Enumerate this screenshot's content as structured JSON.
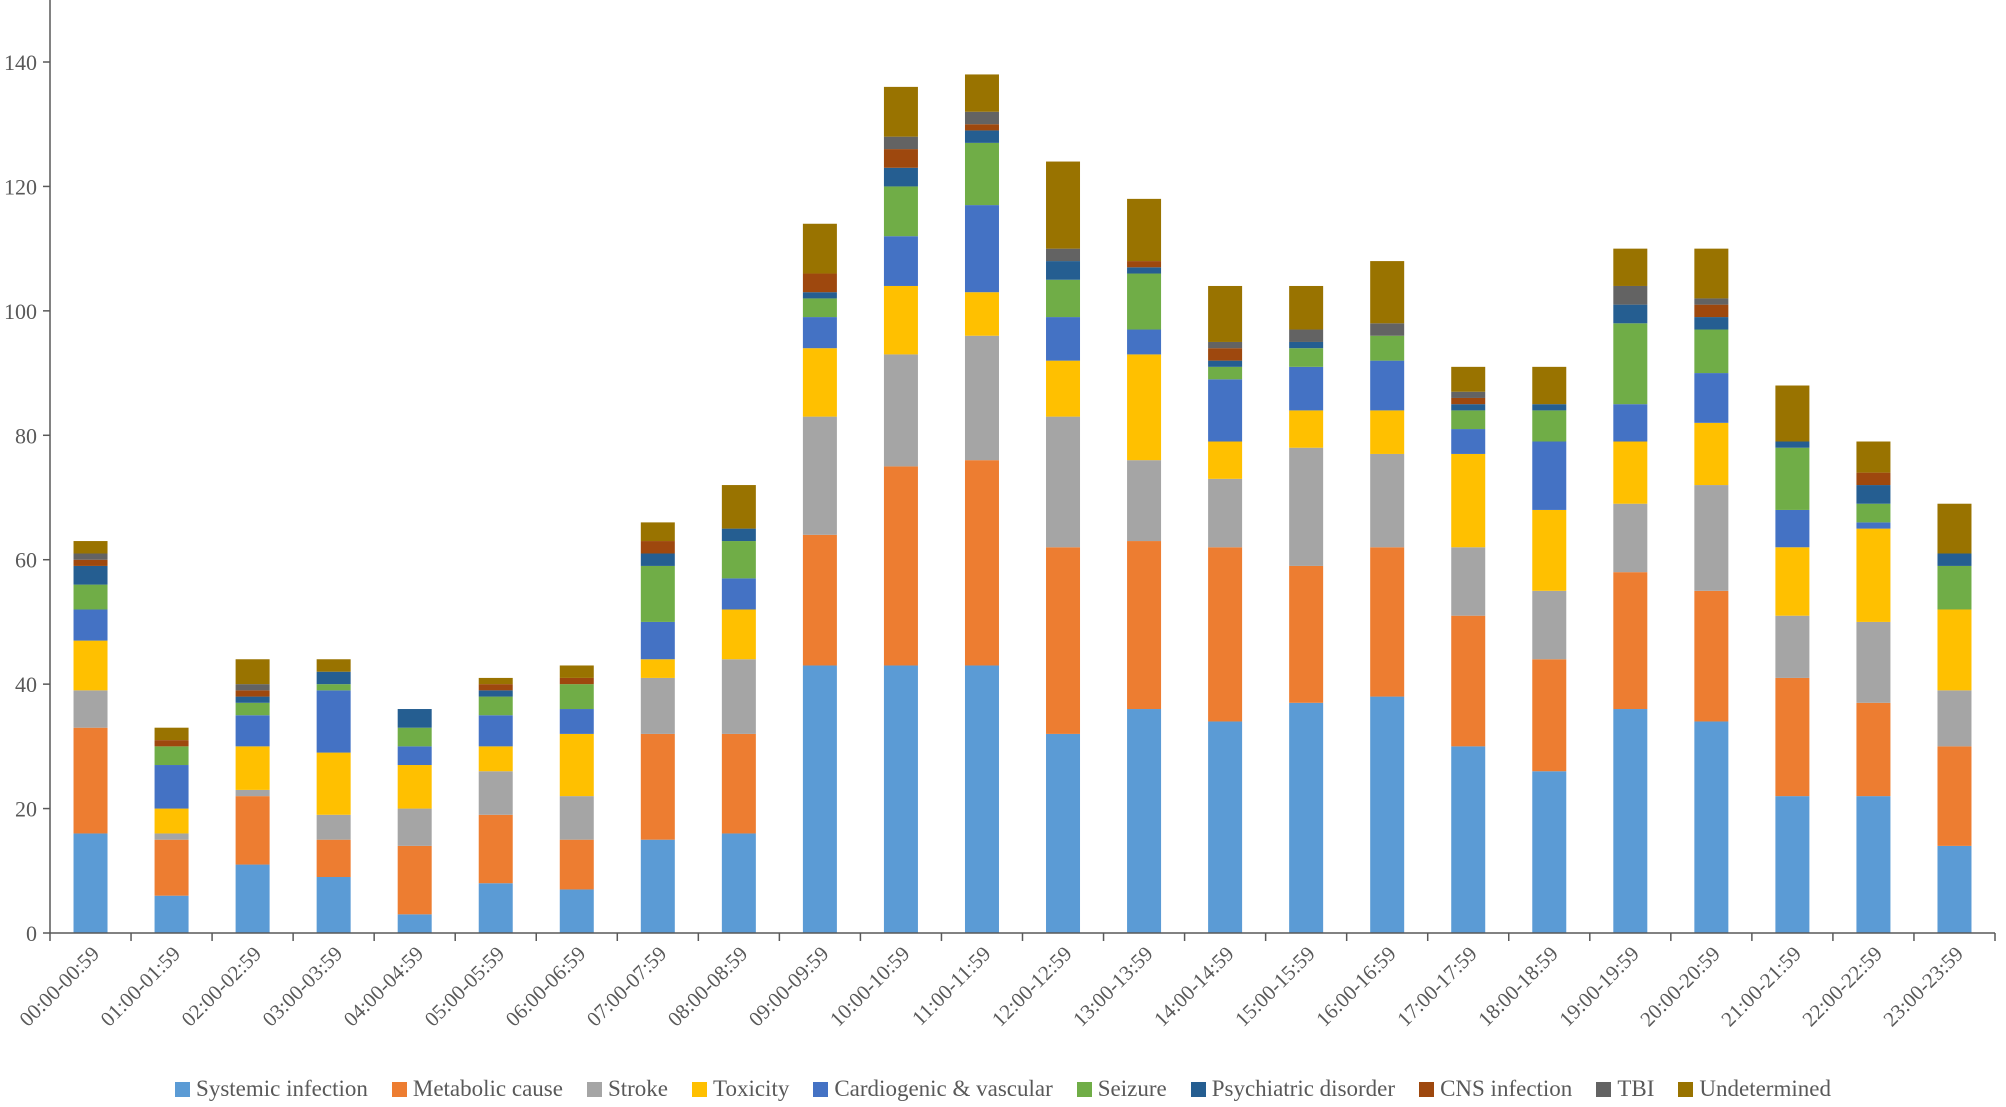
{
  "chart_data": {
    "type": "bar",
    "stacked": true,
    "title": "",
    "xlabel": "",
    "ylabel": "",
    "ylim": [
      0,
      140
    ],
    "yticks": [
      0,
      20,
      40,
      60,
      80,
      100,
      120,
      140
    ],
    "grid": false,
    "legend_position": "bottom",
    "categories": [
      "00:00-00:59",
      "01:00-01:59",
      "02:00-02:59",
      "03:00-03:59",
      "04:00-04:59",
      "05:00-05:59",
      "06:00-06:59",
      "07:00-07:59",
      "08:00-08:59",
      "09:00-09:59",
      "10:00-10:59",
      "11:00-11:59",
      "12:00-12:59",
      "13:00-13:59",
      "14:00-14:59",
      "15:00-15:59",
      "16:00-16:59",
      "17:00-17:59",
      "18:00-18:59",
      "19:00-19:59",
      "20:00-20:59",
      "21:00-21:59",
      "22:00-22:59",
      "23:00-23:59"
    ],
    "series": [
      {
        "name": "Systemic infection",
        "color": "#5B9BD5",
        "values": [
          16,
          6,
          11,
          9,
          3,
          8,
          7,
          15,
          16,
          43,
          43,
          43,
          32,
          36,
          34,
          37,
          38,
          30,
          26,
          36,
          34,
          22,
          22,
          14
        ]
      },
      {
        "name": "Metabolic cause",
        "color": "#ED7D31",
        "values": [
          17,
          9,
          11,
          6,
          11,
          11,
          8,
          17,
          16,
          21,
          32,
          33,
          30,
          27,
          28,
          22,
          24,
          21,
          18,
          22,
          21,
          19,
          15,
          16
        ]
      },
      {
        "name": "Stroke",
        "color": "#A5A5A5",
        "values": [
          6,
          1,
          1,
          4,
          6,
          7,
          7,
          9,
          12,
          19,
          18,
          20,
          21,
          13,
          11,
          19,
          15,
          11,
          11,
          11,
          17,
          10,
          13,
          9
        ]
      },
      {
        "name": "Toxicity",
        "color": "#FFC000",
        "values": [
          8,
          4,
          7,
          10,
          7,
          4,
          10,
          3,
          8,
          11,
          11,
          7,
          9,
          17,
          6,
          6,
          7,
          15,
          13,
          10,
          10,
          11,
          15,
          13
        ]
      },
      {
        "name": "Cardiogenic & vascular",
        "color": "#4472C4",
        "values": [
          5,
          7,
          5,
          10,
          3,
          5,
          4,
          6,
          5,
          5,
          8,
          14,
          7,
          4,
          10,
          7,
          8,
          4,
          11,
          6,
          8,
          6,
          1,
          0
        ]
      },
      {
        "name": "Seizure",
        "color": "#70AD47",
        "values": [
          4,
          3,
          2,
          1,
          3,
          3,
          4,
          9,
          6,
          3,
          8,
          10,
          6,
          9,
          2,
          3,
          4,
          3,
          5,
          13,
          7,
          10,
          3,
          7
        ]
      },
      {
        "name": "Psychiatric disorder",
        "color": "#255E91",
        "values": [
          3,
          0,
          1,
          2,
          3,
          1,
          0,
          2,
          2,
          1,
          3,
          2,
          3,
          1,
          1,
          1,
          0,
          1,
          1,
          3,
          2,
          1,
          3,
          2
        ]
      },
      {
        "name": "CNS infection",
        "color": "#9E480E",
        "values": [
          1,
          1,
          1,
          0,
          0,
          1,
          1,
          2,
          0,
          3,
          3,
          1,
          0,
          1,
          2,
          0,
          0,
          1,
          0,
          0,
          2,
          0,
          2,
          0
        ]
      },
      {
        "name": "TBI",
        "color": "#636363",
        "values": [
          1,
          0,
          1,
          0,
          0,
          0,
          0,
          0,
          0,
          0,
          2,
          2,
          2,
          0,
          1,
          2,
          2,
          1,
          0,
          3,
          1,
          0,
          0,
          0
        ]
      },
      {
        "name": "Undetermined",
        "color": "#997300",
        "values": [
          2,
          2,
          4,
          2,
          0,
          1,
          2,
          3,
          7,
          8,
          8,
          6,
          14,
          10,
          9,
          7,
          10,
          4,
          6,
          6,
          8,
          9,
          5,
          8
        ]
      }
    ]
  }
}
